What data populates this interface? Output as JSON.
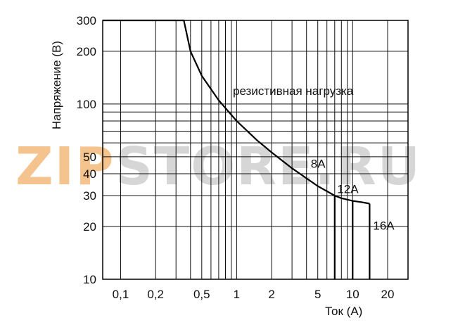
{
  "chart_data": {
    "type": "line",
    "scale": "log-log",
    "xlabel": "Ток (А)",
    "ylabel": "Напряжение (В)",
    "xlim": [
      0.07,
      30
    ],
    "ylim": [
      10,
      300
    ],
    "grid": true,
    "x_ticks": [
      {
        "value": 0.1,
        "label": "0,1"
      },
      {
        "value": 0.2,
        "label": "0,2"
      },
      {
        "value": 0.5,
        "label": "0,5"
      },
      {
        "value": 1,
        "label": "1"
      },
      {
        "value": 2,
        "label": "2"
      },
      {
        "value": 5,
        "label": "5"
      },
      {
        "value": 10,
        "label": "10"
      },
      {
        "value": 20,
        "label": "20"
      }
    ],
    "y_ticks": [
      {
        "value": 10,
        "label": "10"
      },
      {
        "value": 20,
        "label": "20"
      },
      {
        "value": 30,
        "label": "30"
      },
      {
        "value": 40,
        "label": "40"
      },
      {
        "value": 50,
        "label": "50"
      },
      {
        "value": 100,
        "label": "100"
      },
      {
        "value": 200,
        "label": "200"
      },
      {
        "value": 300,
        "label": "300"
      }
    ],
    "series": [
      {
        "name": "резистивная нагрузка",
        "x": [
          0.07,
          0.35,
          0.4,
          0.5,
          0.7,
          1.0,
          1.5,
          2.0,
          3.0,
          5.0,
          7.0,
          8.0,
          10.0,
          12.0,
          14.0
        ],
        "y": [
          300,
          300,
          200,
          145,
          105,
          80,
          62,
          53,
          43,
          34,
          30,
          29,
          28,
          27.5,
          27
        ]
      }
    ],
    "cutoffs": [
      {
        "label": "8А",
        "x": 7.0,
        "y": 30
      },
      {
        "label": "12А",
        "x": 10.0,
        "y": 28
      },
      {
        "label": "16А",
        "x": 14.0,
        "y": 27
      }
    ],
    "annotation": "резистивная нагрузка",
    "watermark": "ZIPSTORE.RU",
    "colors": {
      "line": "#000000",
      "grid": "#111111",
      "watermark_orange": "#f5c48e",
      "watermark_gray": "#d6d6d6"
    }
  }
}
